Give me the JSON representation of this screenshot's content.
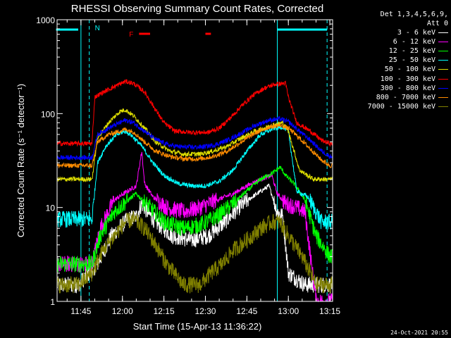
{
  "chart_data": {
    "type": "line",
    "title": "RHESSI Observing Summary Count Rates, Corrected",
    "xlabel": "Start Time (15-Apr-13 11:36:22)",
    "ylabel": "Corrected Count Rate (s⁻¹ detector⁻¹)",
    "yscale": "log",
    "ylim": [
      1,
      1000
    ],
    "xlim": [
      "11:36:22",
      "13:16:00"
    ],
    "x_ticks": [
      "11:45",
      "12:00",
      "12:15",
      "12:30",
      "12:45",
      "13:00",
      "13:15"
    ],
    "y_ticks": [
      "1",
      "10",
      "100",
      "1000"
    ],
    "grid": false,
    "legend_header": [
      "Det 1,3,4,5,6,9,",
      "Att 0"
    ],
    "series": [
      {
        "name": "3 - 6 keV",
        "color": "#ffffff",
        "points": [
          [
            "11:36",
            1.5
          ],
          [
            "11:44",
            1.5
          ],
          [
            "11:51",
            2.5
          ],
          [
            "11:56",
            5
          ],
          [
            "12:02",
            7.5
          ],
          [
            "12:05",
            8
          ],
          [
            "12:07",
            11
          ],
          [
            "12:09",
            9
          ],
          [
            "12:12",
            7
          ],
          [
            "12:18",
            5
          ],
          [
            "12:25",
            4.5
          ],
          [
            "12:31",
            5
          ],
          [
            "12:37",
            7
          ],
          [
            "12:42",
            10
          ],
          [
            "12:47",
            13
          ],
          [
            "12:53",
            17
          ],
          [
            "12:56",
            9
          ],
          [
            "12:58",
            8
          ],
          [
            "13:00",
            2
          ],
          [
            "13:06",
            1.5
          ],
          [
            "13:15",
            1.5
          ]
        ]
      },
      {
        "name": "6 - 12 keV",
        "color": "#ff00ff",
        "points": [
          [
            "11:36",
            2.5
          ],
          [
            "11:44",
            2.5
          ],
          [
            "11:49",
            2.5
          ],
          [
            "11:52",
            6
          ],
          [
            "11:57",
            12
          ],
          [
            "12:02",
            15
          ],
          [
            "12:05",
            17
          ],
          [
            "12:07",
            40
          ],
          [
            "12:08",
            18
          ],
          [
            "12:11",
            13
          ],
          [
            "12:16",
            10
          ],
          [
            "12:22",
            9
          ],
          [
            "12:28",
            10
          ],
          [
            "12:34",
            12
          ],
          [
            "12:40",
            14
          ],
          [
            "12:45",
            17
          ],
          [
            "12:50",
            20
          ],
          [
            "12:54",
            22
          ],
          [
            "12:56",
            14
          ],
          [
            "12:59",
            11
          ],
          [
            "13:03",
            10
          ],
          [
            "13:06",
            9
          ],
          [
            "13:10",
            1
          ],
          [
            "13:15",
            1
          ]
        ]
      },
      {
        "name": "12 - 25 keV",
        "color": "#00ff00",
        "points": [
          [
            "11:36",
            2.5
          ],
          [
            "11:49",
            2.5
          ],
          [
            "11:52",
            5
          ],
          [
            "11:57",
            9
          ],
          [
            "12:02",
            12
          ],
          [
            "12:05",
            14
          ],
          [
            "12:10",
            10
          ],
          [
            "12:15",
            7
          ],
          [
            "12:22",
            6
          ],
          [
            "12:28",
            6.5
          ],
          [
            "12:34",
            8
          ],
          [
            "12:40",
            11
          ],
          [
            "12:45",
            15
          ],
          [
            "12:50",
            20
          ],
          [
            "12:55",
            24
          ],
          [
            "12:57",
            27
          ],
          [
            "12:59",
            22
          ],
          [
            "13:02",
            18
          ],
          [
            "13:06",
            12
          ],
          [
            "13:10",
            5
          ],
          [
            "13:15",
            3
          ]
        ]
      },
      {
        "name": "25 - 50 keV",
        "color": "#00ffff",
        "points": [
          [
            "11:36",
            7.5
          ],
          [
            "11:49",
            7.5
          ],
          [
            "11:51",
            30
          ],
          [
            "11:54",
            45
          ],
          [
            "11:58",
            60
          ],
          [
            "12:01",
            65
          ],
          [
            "12:03",
            60
          ],
          [
            "12:07",
            45
          ],
          [
            "12:11",
            30
          ],
          [
            "12:15",
            22
          ],
          [
            "12:20",
            18
          ],
          [
            "12:25",
            17
          ],
          [
            "12:30",
            17
          ],
          [
            "12:35",
            19
          ],
          [
            "12:40",
            25
          ],
          [
            "12:45",
            40
          ],
          [
            "12:50",
            60
          ],
          [
            "12:55",
            70
          ],
          [
            "12:58",
            72
          ],
          [
            "13:00",
            65
          ],
          [
            "13:03",
            15
          ],
          [
            "13:07",
            13
          ],
          [
            "13:12",
            7
          ],
          [
            "13:15",
            7
          ]
        ]
      },
      {
        "name": "50 - 100 keV",
        "color": "#dddd00",
        "points": [
          [
            "11:36",
            20
          ],
          [
            "11:49",
            20
          ],
          [
            "11:51",
            55
          ],
          [
            "11:55",
            80
          ],
          [
            "11:59",
            105
          ],
          [
            "12:01",
            110
          ],
          [
            "12:04",
            95
          ],
          [
            "12:08",
            70
          ],
          [
            "12:12",
            50
          ],
          [
            "12:17",
            40
          ],
          [
            "12:22",
            37
          ],
          [
            "12:28",
            37
          ],
          [
            "12:33",
            40
          ],
          [
            "12:38",
            45
          ],
          [
            "12:43",
            55
          ],
          [
            "12:48",
            65
          ],
          [
            "12:54",
            75
          ],
          [
            "12:58",
            80
          ],
          [
            "13:00",
            65
          ],
          [
            "13:04",
            25
          ],
          [
            "13:09",
            20
          ],
          [
            "13:15",
            20
          ]
        ]
      },
      {
        "name": "100 - 300 keV",
        "color": "#ff0000",
        "points": [
          [
            "11:36",
            48
          ],
          [
            "11:49",
            48
          ],
          [
            "11:50",
            150
          ],
          [
            "11:54",
            175
          ],
          [
            "11:58",
            200
          ],
          [
            "12:01",
            220
          ],
          [
            "12:04",
            210
          ],
          [
            "12:08",
            170
          ],
          [
            "12:12",
            110
          ],
          [
            "12:15",
            80
          ],
          [
            "12:19",
            65
          ],
          [
            "12:25",
            63
          ],
          [
            "12:31",
            63
          ],
          [
            "12:35",
            70
          ],
          [
            "12:39",
            90
          ],
          [
            "12:43",
            120
          ],
          [
            "12:47",
            155
          ],
          [
            "12:51",
            185
          ],
          [
            "12:55",
            205
          ],
          [
            "12:59",
            210
          ],
          [
            "13:00",
            150
          ],
          [
            "13:03",
            80
          ],
          [
            "13:08",
            65
          ],
          [
            "13:12",
            52
          ],
          [
            "13:15",
            48
          ]
        ]
      },
      {
        "name": "300 - 800 keV",
        "color": "#0000ff",
        "points": [
          [
            "11:36",
            34
          ],
          [
            "11:49",
            34
          ],
          [
            "11:51",
            60
          ],
          [
            "11:55",
            70
          ],
          [
            "11:59",
            80
          ],
          [
            "12:01",
            85
          ],
          [
            "12:04",
            80
          ],
          [
            "12:08",
            65
          ],
          [
            "12:12",
            53
          ],
          [
            "12:17",
            46
          ],
          [
            "12:22",
            44
          ],
          [
            "12:28",
            44
          ],
          [
            "12:33",
            46
          ],
          [
            "12:38",
            52
          ],
          [
            "12:43",
            62
          ],
          [
            "12:48",
            75
          ],
          [
            "12:53",
            85
          ],
          [
            "12:57",
            88
          ],
          [
            "13:00",
            82
          ],
          [
            "13:04",
            65
          ],
          [
            "13:08",
            52
          ],
          [
            "13:12",
            40
          ],
          [
            "13:15",
            35
          ]
        ]
      },
      {
        "name": "800 - 7000 keV",
        "color": "#ff8c00",
        "points": [
          [
            "11:36",
            28
          ],
          [
            "11:49",
            28
          ],
          [
            "11:51",
            50
          ],
          [
            "11:55",
            60
          ],
          [
            "11:59",
            65
          ],
          [
            "12:01",
            68
          ],
          [
            "12:04",
            64
          ],
          [
            "12:08",
            50
          ],
          [
            "12:12",
            40
          ],
          [
            "12:17",
            35
          ],
          [
            "12:22",
            33
          ],
          [
            "12:28",
            33
          ],
          [
            "12:33",
            35
          ],
          [
            "12:38",
            40
          ],
          [
            "12:43",
            50
          ],
          [
            "12:48",
            62
          ],
          [
            "12:53",
            72
          ],
          [
            "12:57",
            75
          ],
          [
            "13:00",
            70
          ],
          [
            "13:04",
            55
          ],
          [
            "13:08",
            42
          ],
          [
            "13:12",
            32
          ],
          [
            "13:15",
            28
          ]
        ]
      },
      {
        "name": "7000 - 15000 keV",
        "color": "#808000",
        "points": [
          [
            "11:36",
            1.5
          ],
          [
            "11:44",
            1.5
          ],
          [
            "11:49",
            2
          ],
          [
            "11:53",
            3.5
          ],
          [
            "11:57",
            5
          ],
          [
            "12:01",
            7
          ],
          [
            "12:04",
            7.5
          ],
          [
            "12:08",
            6
          ],
          [
            "12:12",
            4
          ],
          [
            "12:16",
            2.5
          ],
          [
            "12:22",
            1.5
          ],
          [
            "12:28",
            1.5
          ],
          [
            "12:32",
            2
          ],
          [
            "12:36",
            2.5
          ],
          [
            "12:40",
            3.5
          ],
          [
            "12:45",
            4.5
          ],
          [
            "12:50",
            6
          ],
          [
            "12:54",
            7
          ],
          [
            "12:57",
            7
          ],
          [
            "13:00",
            5
          ],
          [
            "13:05",
            3
          ],
          [
            "13:10",
            1.5
          ],
          [
            "13:15",
            1.5
          ]
        ]
      }
    ],
    "annotations": {
      "night_intervals": [
        [
          "11:36",
          "11:44"
        ],
        [
          "12:56",
          "13:14"
        ]
      ],
      "saa_marker_label": "N",
      "saa_dashed_lines": [
        "11:48",
        "13:14"
      ],
      "flare_marker_label": "F",
      "flare_intervals": [
        [
          "12:06",
          "12:10"
        ],
        [
          "12:30",
          "12:32"
        ]
      ],
      "attenuator_lines": [
        "11:45",
        "12:56"
      ]
    },
    "colors": {
      "background": "#000000",
      "axes": "#ffffff",
      "night_bar": "#00ffff",
      "flare": "#ff0000"
    }
  },
  "footer": {
    "timestamp": "24-Oct-2021 20:55"
  }
}
